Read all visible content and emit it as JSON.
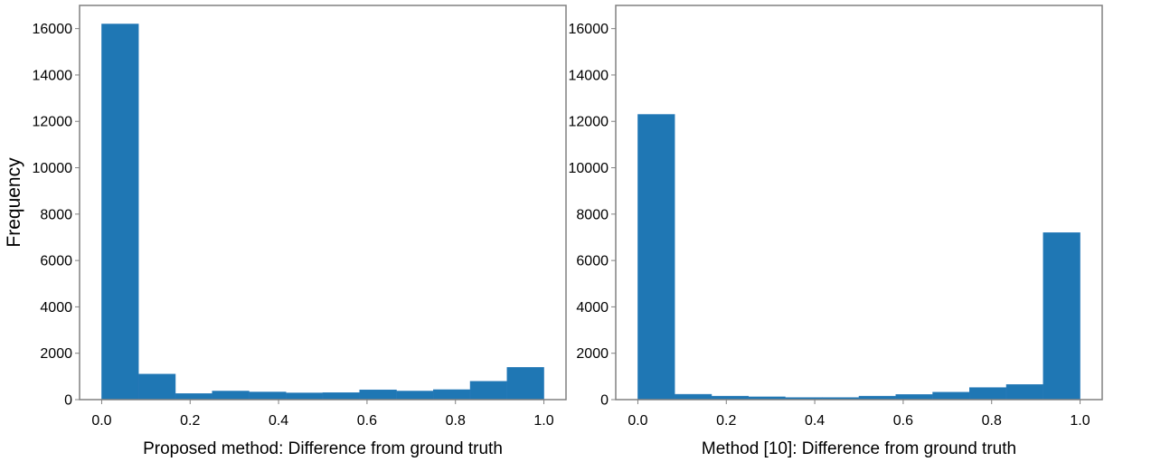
{
  "chart_data": [
    {
      "type": "bar",
      "histogram": true,
      "bin_edges": [
        0.0,
        0.0833,
        0.1667,
        0.25,
        0.3333,
        0.4167,
        0.5,
        0.5833,
        0.6667,
        0.75,
        0.8333,
        0.9167,
        1.0
      ],
      "values": [
        16200,
        1100,
        260,
        370,
        330,
        290,
        300,
        420,
        370,
        430,
        790,
        1390
      ],
      "xlabel": "Proposed method: Difference from ground truth",
      "ylabel": "Frequency",
      "xlim": [
        -0.05,
        1.05
      ],
      "ylim": [
        0,
        17000
      ],
      "xticks": [
        "0.0",
        "0.2",
        "0.4",
        "0.6",
        "0.8",
        "1.0"
      ],
      "yticks": [
        "0",
        "2000",
        "4000",
        "6000",
        "8000",
        "10000",
        "12000",
        "14000",
        "16000"
      ],
      "color": "#1f77b4",
      "grid": false
    },
    {
      "type": "bar",
      "histogram": true,
      "bin_edges": [
        0.0,
        0.0833,
        0.1667,
        0.25,
        0.3333,
        0.4167,
        0.5,
        0.5833,
        0.6667,
        0.75,
        0.8333,
        0.9167,
        1.0
      ],
      "values": [
        12300,
        230,
        150,
        120,
        90,
        90,
        150,
        220,
        320,
        520,
        650,
        7200
      ],
      "xlabel": "Method [10]: Difference from ground truth",
      "ylabel": "",
      "xlim": [
        -0.05,
        1.05
      ],
      "ylim": [
        0,
        17000
      ],
      "xticks": [
        "0.0",
        "0.2",
        "0.4",
        "0.6",
        "0.8",
        "1.0"
      ],
      "yticks": [
        "0",
        "2000",
        "4000",
        "6000",
        "8000",
        "10000",
        "12000",
        "14000",
        "16000"
      ],
      "color": "#1f77b4",
      "grid": false
    }
  ]
}
